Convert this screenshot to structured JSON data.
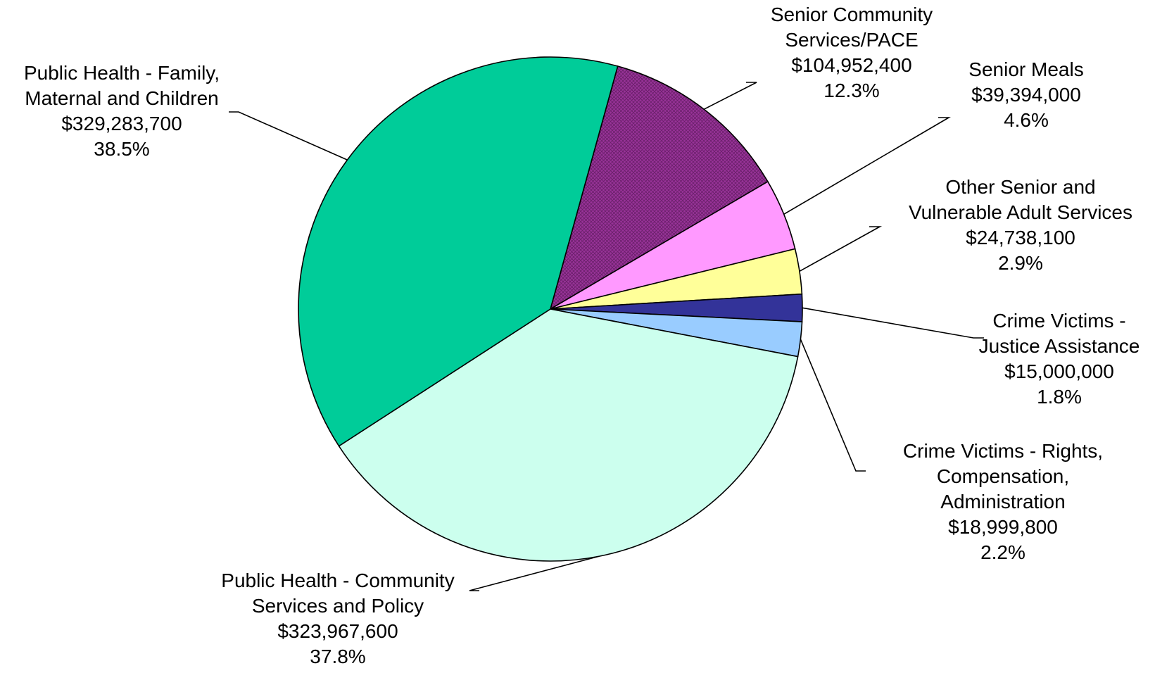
{
  "chart_data": {
    "type": "pie",
    "legend": "none",
    "slices": [
      {
        "label": [
          "Senior Community",
          "Services/PACE"
        ],
        "amount": "$104,952,400",
        "percent": "12.3%",
        "value": 104952400,
        "color": "#993399",
        "pattern": "crosshatch"
      },
      {
        "label": [
          "Senior Meals"
        ],
        "amount": "$39,394,000",
        "percent": "4.6%",
        "value": 39394000,
        "color": "#FF99FF"
      },
      {
        "label": [
          "Other Senior and",
          "Vulnerable Adult Services"
        ],
        "amount": "$24,738,100",
        "percent": "2.9%",
        "value": 24738100,
        "color": "#FFFF99"
      },
      {
        "label": [
          "Crime Victims -",
          "Justice Assistance"
        ],
        "amount": "$15,000,000",
        "percent": "1.8%",
        "value": 15000000,
        "color": "#333399"
      },
      {
        "label": [
          "Crime Victims - Rights,",
          "Compensation,",
          "Administration"
        ],
        "amount": "$18,999,800",
        "percent": "2.2%",
        "value": 18999800,
        "color": "#99CCFF"
      },
      {
        "label": [
          "Public Health - Community",
          "Services and Policy"
        ],
        "amount": "$323,967,600",
        "percent": "37.8%",
        "value": 323967600,
        "color": "#CCFFEE"
      },
      {
        "label": [
          "Public Health - Family,",
          "Maternal and Children"
        ],
        "amount": "$329,283,700",
        "percent": "38.5%",
        "value": 329283700,
        "color": "#00CC99"
      }
    ]
  }
}
